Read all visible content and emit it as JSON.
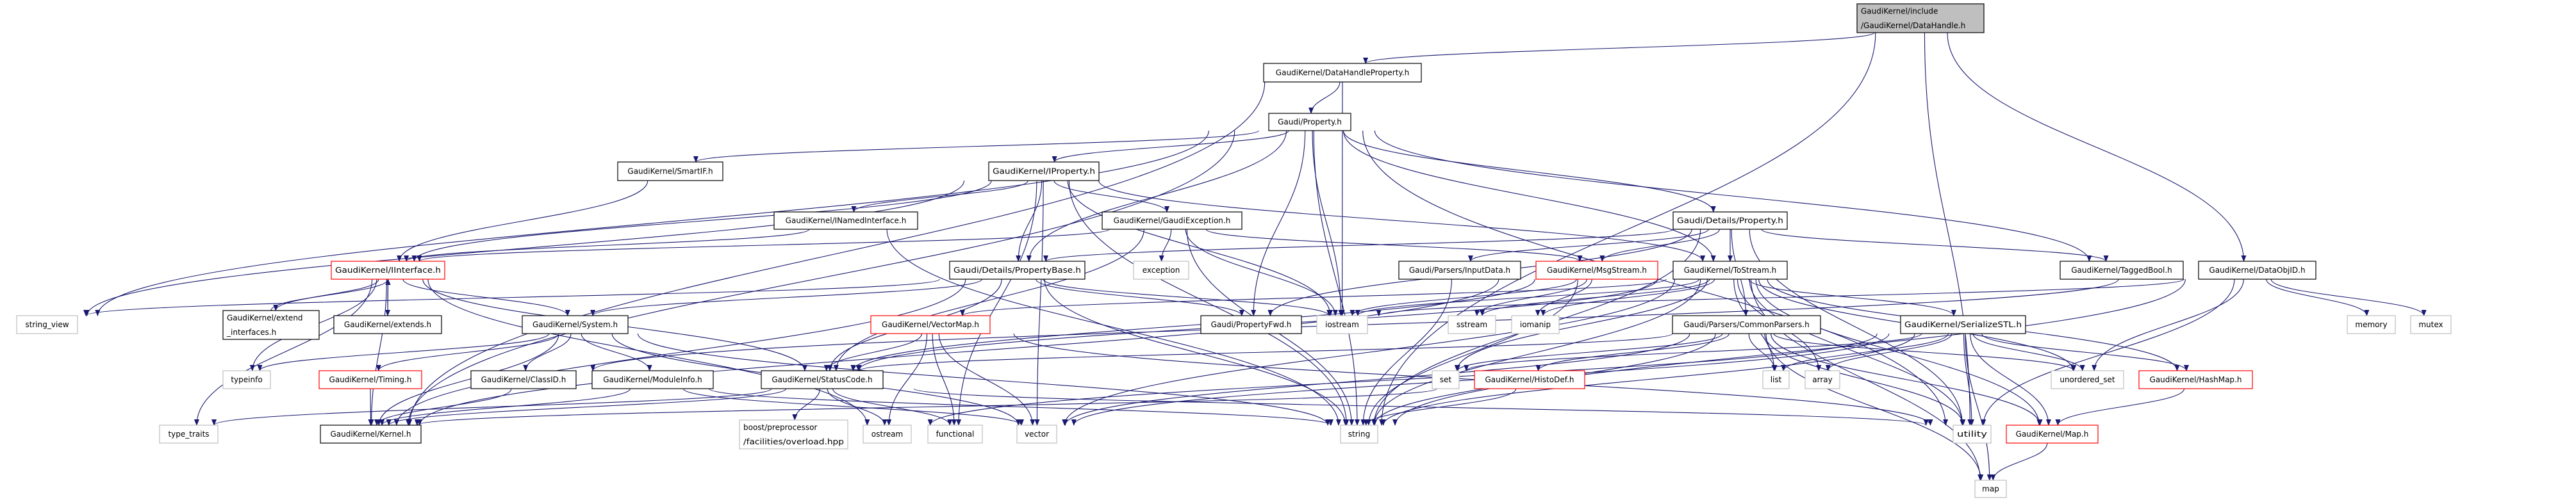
{
  "graph": {
    "edge_color": "#191970",
    "styles": {
      "root": {
        "fill": "#bfbfbf",
        "stroke": "#000000"
      },
      "normal": {
        "fill": "#ffffff",
        "stroke": "#000000"
      },
      "red": {
        "fill": "#ffffff",
        "stroke": "#ff0000"
      },
      "system": {
        "fill": "#ffffff",
        "stroke": "#bfbfbf"
      }
    },
    "nodes": [
      {
        "id": "DataHandle",
        "lines": [
          "GaudiKernel/include",
          "/GaudiKernel/DataHandle.h"
        ],
        "style": "root"
      },
      {
        "id": "DataHandleProperty",
        "lines": [
          "GaudiKernel/DataHandleProperty.h"
        ],
        "style": "normal"
      },
      {
        "id": "Property",
        "lines": [
          "Gaudi/Property.h"
        ],
        "style": "normal"
      },
      {
        "id": "SmartIF",
        "lines": [
          "GaudiKernel/SmartIF.h"
        ],
        "style": "normal"
      },
      {
        "id": "IProperty",
        "lines": [
          "GaudiKernel/IProperty.h"
        ],
        "style": "normal"
      },
      {
        "id": "INamedInterface",
        "lines": [
          "GaudiKernel/INamedInterface.h"
        ],
        "style": "normal"
      },
      {
        "id": "GaudiException",
        "lines": [
          "GaudiKernel/GaudiException.h"
        ],
        "style": "normal"
      },
      {
        "id": "DetailsProperty",
        "lines": [
          "Gaudi/Details/Property.h"
        ],
        "style": "normal"
      },
      {
        "id": "IInterface",
        "lines": [
          "GaudiKernel/IInterface.h"
        ],
        "style": "red"
      },
      {
        "id": "PropertyBase",
        "lines": [
          "Gaudi/Details/PropertyBase.h"
        ],
        "style": "normal"
      },
      {
        "id": "exception",
        "lines": [
          "exception"
        ],
        "style": "system"
      },
      {
        "id": "InputData",
        "lines": [
          "Gaudi/Parsers/InputData.h"
        ],
        "style": "normal"
      },
      {
        "id": "MsgStream",
        "lines": [
          "GaudiKernel/MsgStream.h"
        ],
        "style": "red"
      },
      {
        "id": "ToStream",
        "lines": [
          "GaudiKernel/ToStream.h"
        ],
        "style": "normal"
      },
      {
        "id": "TaggedBool",
        "lines": [
          "GaudiKernel/TaggedBool.h"
        ],
        "style": "normal"
      },
      {
        "id": "DataObjID",
        "lines": [
          "GaudiKernel/DataObjID.h"
        ],
        "style": "normal"
      },
      {
        "id": "string_view",
        "lines": [
          "string_view"
        ],
        "style": "system"
      },
      {
        "id": "extend_interfaces",
        "lines": [
          "GaudiKernel/extend",
          "_interfaces.h"
        ],
        "style": "normal"
      },
      {
        "id": "extends",
        "lines": [
          "GaudiKernel/extends.h"
        ],
        "style": "normal"
      },
      {
        "id": "System",
        "lines": [
          "GaudiKernel/System.h"
        ],
        "style": "normal"
      },
      {
        "id": "VectorMap",
        "lines": [
          "GaudiKernel/VectorMap.h"
        ],
        "style": "red"
      },
      {
        "id": "PropertyFwd",
        "lines": [
          "Gaudi/PropertyFwd.h"
        ],
        "style": "normal"
      },
      {
        "id": "iostream",
        "lines": [
          "iostream"
        ],
        "style": "system"
      },
      {
        "id": "sstream",
        "lines": [
          "sstream"
        ],
        "style": "system"
      },
      {
        "id": "iomanip",
        "lines": [
          "iomanip"
        ],
        "style": "system"
      },
      {
        "id": "CommonParsers",
        "lines": [
          "Gaudi/Parsers/CommonParsers.h"
        ],
        "style": "normal"
      },
      {
        "id": "SerializeSTL",
        "lines": [
          "GaudiKernel/SerializeSTL.h"
        ],
        "style": "normal"
      },
      {
        "id": "memory",
        "lines": [
          "memory"
        ],
        "style": "system"
      },
      {
        "id": "mutex",
        "lines": [
          "mutex"
        ],
        "style": "system"
      },
      {
        "id": "typeinfo",
        "lines": [
          "typeinfo"
        ],
        "style": "system"
      },
      {
        "id": "Timing",
        "lines": [
          "GaudiKernel/Timing.h"
        ],
        "style": "red"
      },
      {
        "id": "ClassID",
        "lines": [
          "GaudiKernel/ClassID.h"
        ],
        "style": "normal"
      },
      {
        "id": "ModuleInfo",
        "lines": [
          "GaudiKernel/ModuleInfo.h"
        ],
        "style": "normal"
      },
      {
        "id": "StatusCode",
        "lines": [
          "GaudiKernel/StatusCode.h"
        ],
        "style": "normal"
      },
      {
        "id": "set",
        "lines": [
          "set"
        ],
        "style": "system"
      },
      {
        "id": "HistoDef",
        "lines": [
          "GaudiKernel/HistoDef.h"
        ],
        "style": "red"
      },
      {
        "id": "list",
        "lines": [
          "list"
        ],
        "style": "system"
      },
      {
        "id": "array",
        "lines": [
          "array"
        ],
        "style": "system"
      },
      {
        "id": "unordered_set",
        "lines": [
          "unordered_set"
        ],
        "style": "system"
      },
      {
        "id": "HashMap",
        "lines": [
          "GaudiKernel/HashMap.h"
        ],
        "style": "red"
      },
      {
        "id": "type_traits",
        "lines": [
          "type_traits"
        ],
        "style": "system"
      },
      {
        "id": "Kernel",
        "lines": [
          "GaudiKernel/Kernel.h"
        ],
        "style": "normal"
      },
      {
        "id": "boost",
        "lines": [
          "boost/preprocessor",
          "/facilities/overload.hpp"
        ],
        "style": "system"
      },
      {
        "id": "ostream",
        "lines": [
          "ostream"
        ],
        "style": "system"
      },
      {
        "id": "functional",
        "lines": [
          "functional"
        ],
        "style": "system"
      },
      {
        "id": "vector",
        "lines": [
          "vector"
        ],
        "style": "system"
      },
      {
        "id": "string",
        "lines": [
          "string"
        ],
        "style": "system"
      },
      {
        "id": "utility",
        "lines": [
          "utility"
        ],
        "style": "system"
      },
      {
        "id": "Map",
        "lines": [
          "GaudiKernel/Map.h"
        ],
        "style": "red"
      },
      {
        "id": "map",
        "lines": [
          "map"
        ],
        "style": "system"
      }
    ],
    "edges": [
      [
        "DataHandle",
        "DataHandleProperty"
      ],
      [
        "DataHandle",
        "DataObjID"
      ],
      [
        "DataHandle",
        "utility"
      ],
      [
        "DataHandle",
        "string"
      ],
      [
        "DataHandleProperty",
        "Property"
      ],
      [
        "DataHandleProperty",
        "iostream"
      ],
      [
        "DataHandleProperty",
        "Kernel"
      ],
      [
        "Property",
        "SmartIF"
      ],
      [
        "Property",
        "IProperty"
      ],
      [
        "Property",
        "PropertyBase"
      ],
      [
        "Property",
        "PropertyFwd"
      ],
      [
        "Property",
        "DetailsProperty"
      ],
      [
        "Property",
        "ToStream"
      ],
      [
        "Property",
        "TaggedBool"
      ],
      [
        "Property",
        "Kernel"
      ],
      [
        "Property",
        "string_view"
      ],
      [
        "Property",
        "string"
      ],
      [
        "Property",
        "utility"
      ],
      [
        "Property",
        "iostream"
      ],
      [
        "SmartIF",
        "IInterface"
      ],
      [
        "IProperty",
        "IInterface"
      ],
      [
        "IProperty",
        "INamedInterface"
      ],
      [
        "IProperty",
        "GaudiException"
      ],
      [
        "IProperty",
        "PropertyBase"
      ],
      [
        "IProperty",
        "ToStream"
      ],
      [
        "IProperty",
        "string_view"
      ],
      [
        "IProperty",
        "iostream"
      ],
      [
        "IProperty",
        "string"
      ],
      [
        "IProperty",
        "vector"
      ],
      [
        "IProperty",
        "functional"
      ],
      [
        "INamedInterface",
        "IInterface"
      ],
      [
        "INamedInterface",
        "string"
      ],
      [
        "GaudiException",
        "IInterface"
      ],
      [
        "GaudiException",
        "StatusCode"
      ],
      [
        "GaudiException",
        "exception"
      ],
      [
        "GaudiException",
        "iostream"
      ],
      [
        "GaudiException",
        "string"
      ],
      [
        "GaudiException",
        "MsgStream"
      ],
      [
        "DetailsProperty",
        "PropertyBase"
      ],
      [
        "DetailsProperty",
        "PropertyFwd"
      ],
      [
        "DetailsProperty",
        "ToStream"
      ],
      [
        "DetailsProperty",
        "InputData"
      ],
      [
        "DetailsProperty",
        "TaggedBool"
      ],
      [
        "DetailsProperty",
        "CommonParsers"
      ],
      [
        "DetailsProperty",
        "MsgStream"
      ],
      [
        "DetailsProperty",
        "string"
      ],
      [
        "DetailsProperty",
        "utility"
      ],
      [
        "IInterface",
        "extend_interfaces"
      ],
      [
        "IInterface",
        "extends"
      ],
      [
        "IInterface",
        "System"
      ],
      [
        "IInterface",
        "StatusCode"
      ],
      [
        "IInterface",
        "Kernel"
      ],
      [
        "IInterface",
        "typeinfo"
      ],
      [
        "IInterface",
        "type_traits"
      ],
      [
        "IInterface",
        "ostream"
      ],
      [
        "extend_interfaces",
        "IInterface"
      ],
      [
        "extends",
        "IInterface"
      ],
      [
        "System",
        "Kernel"
      ],
      [
        "System",
        "Timing"
      ],
      [
        "System",
        "ClassID"
      ],
      [
        "System",
        "ModuleInfo"
      ],
      [
        "System",
        "typeinfo"
      ],
      [
        "System",
        "string"
      ],
      [
        "System",
        "vector"
      ],
      [
        "Timing",
        "Kernel"
      ],
      [
        "ClassID",
        "Kernel"
      ],
      [
        "ModuleInfo",
        "Kernel"
      ],
      [
        "ModuleInfo",
        "string"
      ],
      [
        "ModuleInfo",
        "vector"
      ],
      [
        "StatusCode",
        "boost"
      ],
      [
        "StatusCode",
        "Kernel"
      ],
      [
        "StatusCode",
        "ostream"
      ],
      [
        "StatusCode",
        "functional"
      ],
      [
        "StatusCode",
        "type_traits"
      ],
      [
        "StatusCode",
        "utility"
      ],
      [
        "PropertyBase",
        "StatusCode"
      ],
      [
        "PropertyBase",
        "PropertyFwd"
      ],
      [
        "PropertyBase",
        "iostream"
      ],
      [
        "PropertyBase",
        "string"
      ],
      [
        "PropertyBase",
        "string_view"
      ],
      [
        "PropertyBase",
        "Kernel"
      ],
      [
        "PropertyBase",
        "System"
      ],
      [
        "ToStream",
        "iostream"
      ],
      [
        "ToStream",
        "sstream"
      ],
      [
        "ToStream",
        "iomanip"
      ],
      [
        "ToStream",
        "string"
      ],
      [
        "ToStream",
        "vector"
      ],
      [
        "ToStream",
        "list"
      ],
      [
        "ToStream",
        "array"
      ],
      [
        "ToStream",
        "set"
      ],
      [
        "ToStream",
        "map"
      ],
      [
        "ToStream",
        "utility"
      ],
      [
        "ToStream",
        "unordered_set"
      ],
      [
        "ToStream",
        "SerializeSTL"
      ],
      [
        "ToStream",
        "HashMap"
      ],
      [
        "ToStream",
        "Map"
      ],
      [
        "ToStream",
        "VectorMap"
      ],
      [
        "ToStream",
        "StatusCode"
      ],
      [
        "InputData",
        "string"
      ],
      [
        "MsgStream",
        "StatusCode"
      ],
      [
        "MsgStream",
        "iostream"
      ],
      [
        "MsgStream",
        "sstream"
      ],
      [
        "MsgStream",
        "iomanip"
      ],
      [
        "MsgStream",
        "string"
      ],
      [
        "MsgStream",
        "Kernel"
      ],
      [
        "VectorMap",
        "StatusCode"
      ],
      [
        "VectorMap",
        "ostream"
      ],
      [
        "VectorMap",
        "functional"
      ],
      [
        "VectorMap",
        "vector"
      ],
      [
        "VectorMap",
        "utility"
      ],
      [
        "CommonParsers",
        "StatusCode"
      ],
      [
        "CommonParsers",
        "set"
      ],
      [
        "CommonParsers",
        "HistoDef"
      ],
      [
        "CommonParsers",
        "list"
      ],
      [
        "CommonParsers",
        "unordered_set"
      ],
      [
        "CommonParsers",
        "map"
      ],
      [
        "CommonParsers",
        "string"
      ],
      [
        "CommonParsers",
        "vector"
      ],
      [
        "CommonParsers",
        "utility"
      ],
      [
        "CommonParsers",
        "Map"
      ],
      [
        "HistoDef",
        "string"
      ],
      [
        "HistoDef",
        "Kernel"
      ],
      [
        "SerializeSTL",
        "list"
      ],
      [
        "SerializeSTL",
        "array"
      ],
      [
        "SerializeSTL",
        "unordered_set"
      ],
      [
        "SerializeSTL",
        "HashMap"
      ],
      [
        "SerializeSTL",
        "Map"
      ],
      [
        "SerializeSTL",
        "utility"
      ],
      [
        "SerializeSTL",
        "map"
      ],
      [
        "SerializeSTL",
        "string"
      ],
      [
        "SerializeSTL",
        "vector"
      ],
      [
        "SerializeSTL",
        "ostream"
      ],
      [
        "SerializeSTL",
        "set"
      ],
      [
        "HashMap",
        "Map"
      ],
      [
        "Map",
        "map"
      ],
      [
        "DataObjID",
        "iostream"
      ],
      [
        "DataObjID",
        "unordered_set"
      ],
      [
        "DataObjID",
        "memory"
      ],
      [
        "DataObjID",
        "mutex"
      ],
      [
        "DataObjID",
        "string"
      ],
      [
        "DataObjID",
        "utility"
      ],
      [
        "DataObjID",
        "ClassID"
      ]
    ]
  }
}
